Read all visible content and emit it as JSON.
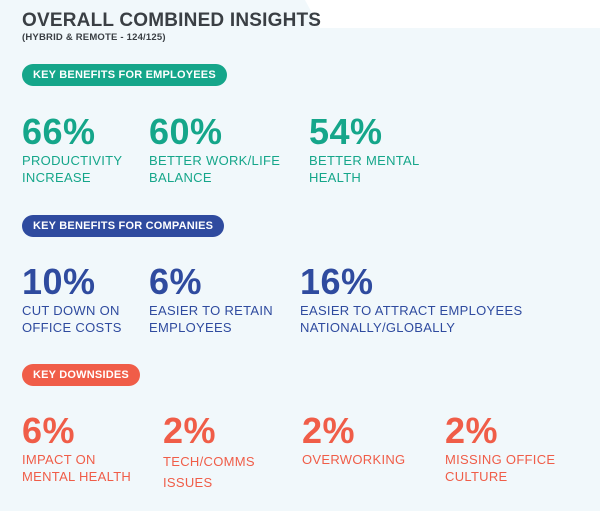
{
  "header": {
    "title": "OVERALL COMBINED INSIGHTS",
    "subtitle": "(HYBRID & REMOTE - 124/125)"
  },
  "colors": {
    "employees": "#15a68a",
    "companies": "#2f4b9f",
    "downsides": "#f05d48",
    "panel_background": "#f1f8fb"
  },
  "employees": {
    "label": "KEY BENEFITS FOR EMPLOYEES",
    "stats": [
      {
        "value": "66%",
        "line1": "PRODUCTIVITY",
        "line2": "INCREASE"
      },
      {
        "value": "60%",
        "line1": "BETTER WORK/LIFE",
        "line2": "BALANCE"
      },
      {
        "value": "54%",
        "line1": "BETTER MENTAL",
        "line2": "HEALTH"
      }
    ]
  },
  "companies": {
    "label": "KEY BENEFITS FOR COMPANIES",
    "stats": [
      {
        "value": "10%",
        "line1": "CUT DOWN ON",
        "line2": "OFFICE COSTS"
      },
      {
        "value": "6%",
        "line1": "EASIER TO RETAIN",
        "line2": "EMPLOYEES"
      },
      {
        "value": "16%",
        "line1": "EASIER TO ATTRACT EMPLOYEES",
        "line2": "NATIONALLY/GLOBALLY"
      }
    ]
  },
  "downsides": {
    "label": "KEY DOWNSIDES",
    "stats": [
      {
        "value": "6%",
        "line1": "IMPACT ON",
        "line2": "MENTAL HEALTH"
      },
      {
        "value": "2%",
        "line1": "TECH/COMMS",
        "line2": "ISSUES"
      },
      {
        "value": "2%",
        "line1": "OVERWORKING",
        "line2": ""
      },
      {
        "value": "2%",
        "line1": "MISSING OFFICE",
        "line2": "CULTURE"
      }
    ]
  }
}
